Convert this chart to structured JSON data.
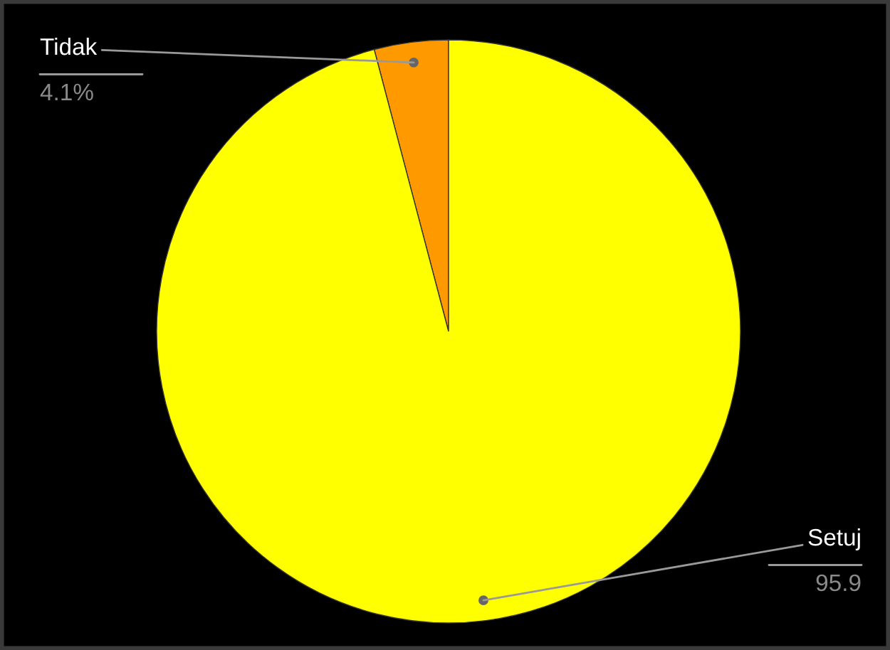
{
  "chart_data": {
    "type": "pie",
    "categories": [
      "Tidak",
      "Setuj"
    ],
    "values": [
      4.1,
      95.9
    ],
    "colors": [
      "#ff9900",
      "#ffff00"
    ],
    "value_labels": [
      "4.1%",
      "95.9"
    ]
  }
}
